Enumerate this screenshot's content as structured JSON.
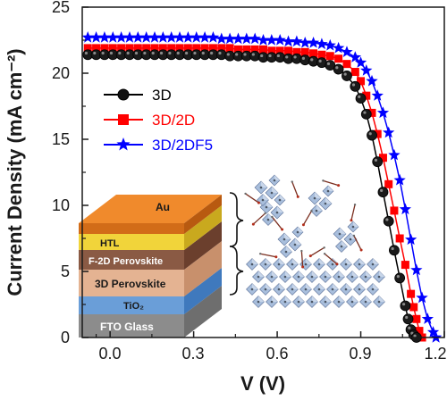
{
  "chart_data": {
    "type": "line",
    "xlabel": "V (V)",
    "ylabel": "Current Density (mA cm⁻²)",
    "xlim": [
      -0.1,
      1.2
    ],
    "ylim": [
      0,
      25
    ],
    "xticks": [
      "0.0",
      "0.3",
      "0.6",
      "0.9",
      "1.2"
    ],
    "yticks": [
      "0",
      "5",
      "10",
      "15",
      "20",
      "25"
    ],
    "legend_position": "upper-left",
    "series": [
      {
        "name": "3D",
        "color": "#000000",
        "marker": "sphere",
        "x": [
          -0.08,
          -0.05,
          -0.02,
          0.01,
          0.04,
          0.07,
          0.1,
          0.13,
          0.16,
          0.19,
          0.22,
          0.25,
          0.28,
          0.31,
          0.34,
          0.37,
          0.4,
          0.43,
          0.46,
          0.49,
          0.52,
          0.55,
          0.58,
          0.61,
          0.64,
          0.67,
          0.7,
          0.73,
          0.76,
          0.79,
          0.82,
          0.85,
          0.88,
          0.9,
          0.92,
          0.94,
          0.96,
          0.98,
          1.0,
          1.02,
          1.04,
          1.06,
          1.07,
          1.08,
          1.09,
          1.1
        ],
        "y": [
          21.4,
          21.4,
          21.4,
          21.4,
          21.4,
          21.4,
          21.4,
          21.4,
          21.4,
          21.4,
          21.4,
          21.4,
          21.4,
          21.4,
          21.4,
          21.4,
          21.4,
          21.3,
          21.3,
          21.3,
          21.3,
          21.2,
          21.2,
          21.2,
          21.1,
          21.1,
          21.0,
          20.9,
          20.8,
          20.6,
          20.3,
          19.8,
          19.0,
          18.1,
          16.9,
          15.3,
          13.3,
          11.0,
          8.8,
          6.6,
          4.5,
          2.4,
          1.4,
          0.6,
          0.2,
          0.0
        ]
      },
      {
        "name": "3D/2D",
        "color": "#ff0000",
        "marker": "square",
        "x": [
          -0.08,
          -0.05,
          -0.02,
          0.01,
          0.04,
          0.07,
          0.1,
          0.13,
          0.16,
          0.19,
          0.22,
          0.25,
          0.28,
          0.31,
          0.34,
          0.37,
          0.4,
          0.43,
          0.46,
          0.49,
          0.52,
          0.55,
          0.58,
          0.61,
          0.64,
          0.67,
          0.7,
          0.73,
          0.76,
          0.79,
          0.82,
          0.85,
          0.88,
          0.9,
          0.92,
          0.94,
          0.96,
          0.98,
          1.0,
          1.02,
          1.04,
          1.06,
          1.08,
          1.09,
          1.1,
          1.11,
          1.12
        ],
        "y": [
          21.9,
          21.9,
          21.9,
          21.9,
          21.9,
          21.9,
          21.9,
          21.9,
          21.9,
          21.9,
          21.9,
          21.9,
          21.9,
          21.9,
          21.9,
          21.9,
          21.9,
          21.9,
          21.8,
          21.8,
          21.8,
          21.8,
          21.7,
          21.7,
          21.7,
          21.6,
          21.6,
          21.5,
          21.4,
          21.3,
          21.1,
          20.7,
          20.1,
          19.4,
          18.3,
          17.0,
          15.4,
          13.6,
          11.6,
          9.6,
          7.5,
          5.5,
          3.3,
          2.3,
          1.4,
          0.5,
          0.0
        ]
      },
      {
        "name": "3D/2DF5",
        "color": "#0000ff",
        "marker": "star",
        "x": [
          -0.08,
          -0.05,
          -0.02,
          0.01,
          0.04,
          0.07,
          0.1,
          0.13,
          0.16,
          0.19,
          0.22,
          0.25,
          0.28,
          0.31,
          0.34,
          0.37,
          0.4,
          0.43,
          0.46,
          0.49,
          0.52,
          0.55,
          0.58,
          0.61,
          0.64,
          0.67,
          0.7,
          0.73,
          0.76,
          0.79,
          0.82,
          0.85,
          0.88,
          0.9,
          0.92,
          0.94,
          0.96,
          0.98,
          1.0,
          1.02,
          1.04,
          1.06,
          1.08,
          1.1,
          1.12,
          1.14,
          1.16,
          1.17
        ],
        "y": [
          22.7,
          22.7,
          22.7,
          22.7,
          22.7,
          22.7,
          22.7,
          22.7,
          22.7,
          22.7,
          22.7,
          22.7,
          22.7,
          22.7,
          22.7,
          22.7,
          22.6,
          22.6,
          22.6,
          22.6,
          22.6,
          22.5,
          22.5,
          22.5,
          22.4,
          22.4,
          22.3,
          22.3,
          22.2,
          22.1,
          21.9,
          21.6,
          21.2,
          20.8,
          20.2,
          19.4,
          18.3,
          17.0,
          15.5,
          13.8,
          11.9,
          9.7,
          7.4,
          5.1,
          3.0,
          1.4,
          0.4,
          0.0
        ]
      }
    ]
  },
  "inset": {
    "layers": [
      "Au",
      "HTL",
      "F-2D Perovskite",
      "3D Perovskite",
      "TiO₂",
      "FTO Glass"
    ]
  }
}
